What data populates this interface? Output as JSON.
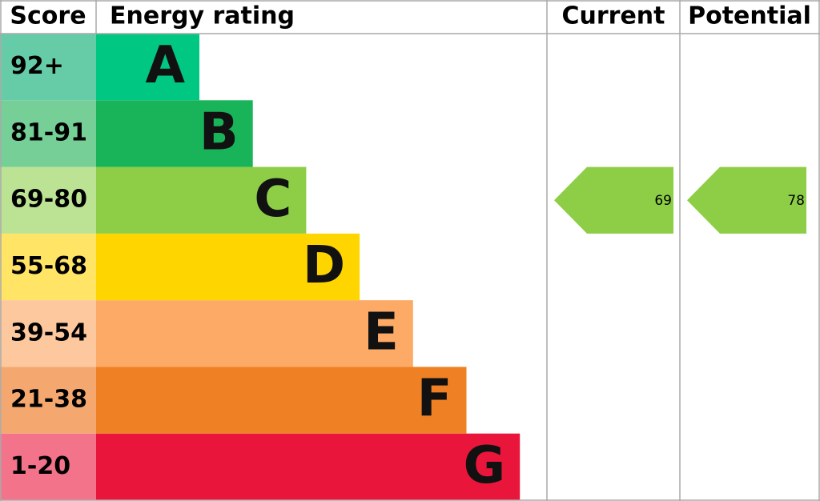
{
  "header": {
    "score": "Score",
    "rating": "Energy rating",
    "current": "Current",
    "potential": "Potential"
  },
  "bands": [
    {
      "score": "92+",
      "letter": "A",
      "color": "#00c781",
      "score_color": "#66cca8"
    },
    {
      "score": "81-91",
      "letter": "B",
      "color": "#19b459",
      "score_color": "#75cf97"
    },
    {
      "score": "69-80",
      "letter": "C",
      "color": "#8dce46",
      "score_color": "#bbe393"
    },
    {
      "score": "55-68",
      "letter": "D",
      "color": "#ffd500",
      "score_color": "#ffe466"
    },
    {
      "score": "39-54",
      "letter": "E",
      "color": "#fcaa65",
      "score_color": "#fdc89e"
    },
    {
      "score": "21-38",
      "letter": "F",
      "color": "#ef8023",
      "score_color": "#f4a870"
    },
    {
      "score": "1-20",
      "letter": "G",
      "color": "#e9153b",
      "score_color": "#f2738a"
    }
  ],
  "current": {
    "value": 69
  },
  "potential": {
    "value": 78
  }
}
